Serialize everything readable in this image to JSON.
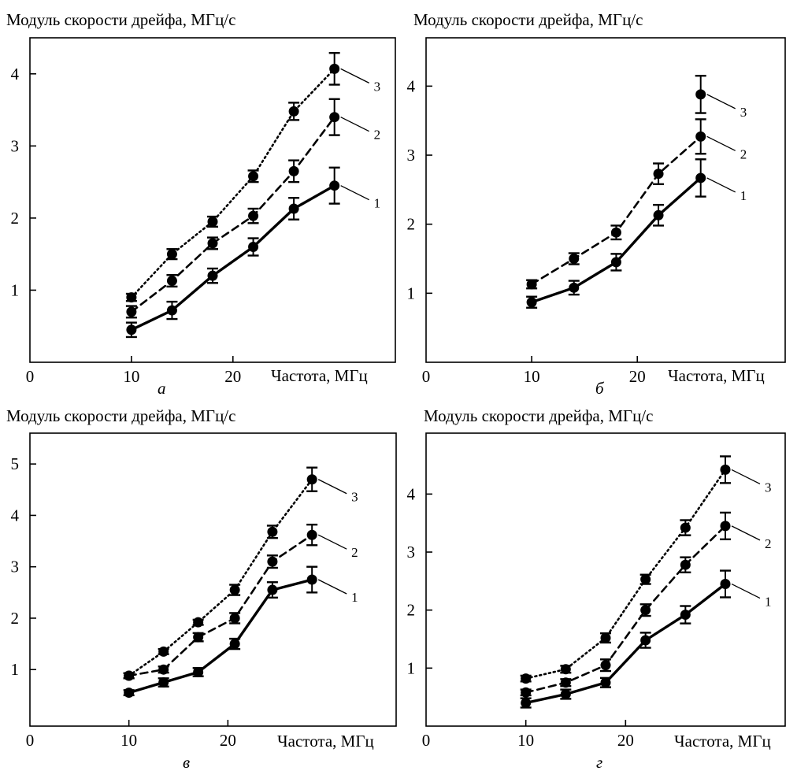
{
  "chart_data": [
    {
      "type": "line",
      "panel_label": "а",
      "ylabel": "Модуль скорости дрейфа, МГц/с",
      "xlabel": "Частота, МГц",
      "x_ticks": [
        "0",
        "10",
        "20"
      ],
      "y_ticks": [
        "1",
        "2",
        "3",
        "4"
      ],
      "xlim": [
        0,
        36
      ],
      "ylim": [
        0,
        4.5
      ],
      "series": [
        {
          "name": "1",
          "x": [
            10,
            14,
            18,
            22,
            26,
            30
          ],
          "y": [
            0.45,
            0.72,
            1.2,
            1.6,
            2.13,
            2.45
          ],
          "err": [
            0.1,
            0.12,
            0.1,
            0.12,
            0.15,
            0.25
          ],
          "style": "solid"
        },
        {
          "name": "2",
          "x": [
            10,
            14,
            18,
            22,
            26,
            30
          ],
          "y": [
            0.7,
            1.13,
            1.65,
            2.03,
            2.65,
            3.4
          ],
          "err": [
            0.08,
            0.08,
            0.08,
            0.1,
            0.15,
            0.25
          ],
          "style": "dashed"
        },
        {
          "name": "3",
          "x": [
            10,
            14,
            18,
            22,
            26,
            30
          ],
          "y": [
            0.9,
            1.5,
            1.95,
            2.58,
            3.48,
            4.07
          ],
          "err": [
            0.05,
            0.07,
            0.07,
            0.08,
            0.12,
            0.22
          ],
          "style": "dotted"
        }
      ]
    },
    {
      "type": "line",
      "panel_label": "б",
      "ylabel": "Модуль скорости дрейфа, МГц/с",
      "xlabel": "Частота, МГц",
      "x_ticks": [
        "0",
        "10",
        "20"
      ],
      "y_ticks": [
        "1",
        "2",
        "3",
        "4"
      ],
      "xlim": [
        0,
        34
      ],
      "ylim": [
        0,
        4.7
      ],
      "series": [
        {
          "name": "1",
          "x": [
            10,
            14,
            18,
            22,
            26
          ],
          "y": [
            0.87,
            1.08,
            1.45,
            2.13,
            2.67
          ],
          "err": [
            0.08,
            0.1,
            0.12,
            0.15,
            0.27
          ],
          "style": "solid"
        },
        {
          "name": "2",
          "x": [
            10,
            14,
            18,
            22,
            26
          ],
          "y": [
            1.13,
            1.5,
            1.88,
            2.73,
            3.27
          ],
          "err": [
            0.06,
            0.08,
            0.1,
            0.15,
            0.25
          ],
          "style": "dashed"
        },
        {
          "name": "3",
          "x": [
            26
          ],
          "y": [
            3.88
          ],
          "err": [
            0.27
          ],
          "style": "dotted"
        }
      ]
    },
    {
      "type": "line",
      "panel_label": "в",
      "ylabel": "Модуль скорости дрейфа, МГц/с",
      "xlabel": "Частота, МГц",
      "x_ticks": [
        "0",
        "10",
        "20"
      ],
      "y_ticks": [
        "1",
        "2",
        "3",
        "4",
        "5"
      ],
      "xlim": [
        0,
        37
      ],
      "ylim": [
        -0.1,
        5.6
      ],
      "series": [
        {
          "name": "1",
          "x": [
            10,
            13.5,
            17,
            20.7,
            24.5,
            28.5
          ],
          "y": [
            0.55,
            0.75,
            0.95,
            1.5,
            2.55,
            2.75
          ],
          "err": [
            0.05,
            0.08,
            0.08,
            0.1,
            0.15,
            0.25
          ],
          "style": "solid"
        },
        {
          "name": "2",
          "x": [
            10,
            13.5,
            17,
            20.7,
            24.5,
            28.5
          ],
          "y": [
            0.88,
            1.0,
            1.63,
            2.0,
            3.1,
            3.62
          ],
          "err": [
            0.05,
            0.06,
            0.08,
            0.1,
            0.12,
            0.2
          ],
          "style": "dashed"
        },
        {
          "name": "3",
          "x": [
            10,
            13.5,
            17,
            20.7,
            24.5,
            28.5
          ],
          "y": [
            0.88,
            1.35,
            1.92,
            2.55,
            3.68,
            4.7
          ],
          "err": [
            0.05,
            0.05,
            0.05,
            0.1,
            0.12,
            0.23
          ],
          "style": "dotted"
        }
      ]
    },
    {
      "type": "line",
      "panel_label": "г",
      "ylabel": "Модуль скорости дрейфа, МГц/с",
      "xlabel": "Частота, МГц",
      "x_ticks": [
        "0",
        "10",
        "20"
      ],
      "y_ticks": [
        "1",
        "2",
        "3",
        "4"
      ],
      "xlim": [
        0,
        36
      ],
      "ylim": [
        0,
        5.05
      ],
      "series": [
        {
          "name": "1",
          "x": [
            10,
            14,
            18,
            22,
            26,
            30
          ],
          "y": [
            0.4,
            0.55,
            0.75,
            1.48,
            1.92,
            2.45
          ],
          "err": [
            0.08,
            0.08,
            0.08,
            0.13,
            0.15,
            0.23
          ],
          "style": "solid"
        },
        {
          "name": "2",
          "x": [
            10,
            14,
            18,
            22,
            26,
            30
          ],
          "y": [
            0.58,
            0.75,
            1.05,
            2.0,
            2.78,
            3.45
          ],
          "err": [
            0.05,
            0.06,
            0.1,
            0.1,
            0.13,
            0.23
          ],
          "style": "dashed"
        },
        {
          "name": "3",
          "x": [
            10,
            14,
            18,
            22,
            26,
            30
          ],
          "y": [
            0.82,
            0.98,
            1.52,
            2.53,
            3.42,
            4.42
          ],
          "err": [
            0.05,
            0.06,
            0.08,
            0.08,
            0.13,
            0.23
          ],
          "style": "dotted"
        }
      ]
    }
  ]
}
